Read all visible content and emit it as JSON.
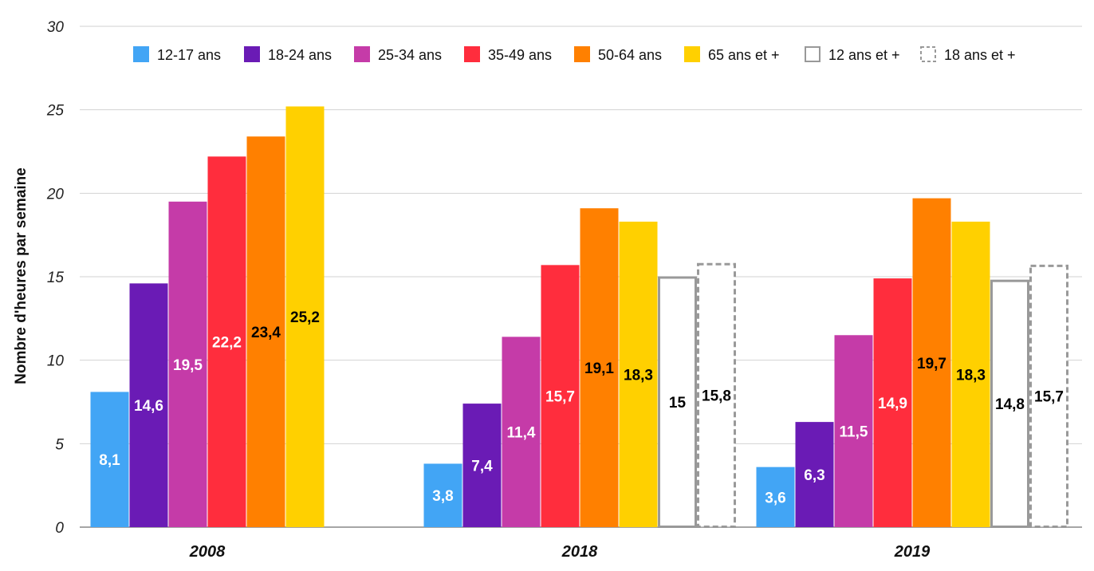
{
  "chart_data": {
    "type": "bar",
    "title": "",
    "xlabel": "",
    "ylabel": "Nombre d'heures par semaine",
    "ylim": [
      0,
      30
    ],
    "yticks": [
      0,
      5,
      10,
      15,
      20,
      25,
      30
    ],
    "grid": true,
    "legend_position": "top",
    "categories": [
      "2008",
      "2018",
      "2019"
    ],
    "series": [
      {
        "name": "12-17 ans",
        "color": "#42A5F5",
        "label_color": "#ffffff",
        "style": "solid",
        "values": [
          8.1,
          3.8,
          3.6
        ],
        "labels": [
          "8,1",
          "3,8",
          "3,6"
        ]
      },
      {
        "name": "18-24 ans",
        "color": "#6A1BB5",
        "label_color": "#ffffff",
        "style": "solid",
        "values": [
          14.6,
          7.4,
          6.3
        ],
        "labels": [
          "14,6",
          "7,4",
          "6,3"
        ]
      },
      {
        "name": "25-34 ans",
        "color": "#C53BA8",
        "label_color": "#ffffff",
        "style": "solid",
        "values": [
          19.5,
          11.4,
          11.5
        ],
        "labels": [
          "19,5",
          "11,4",
          "11,5"
        ]
      },
      {
        "name": "35-49 ans",
        "color": "#FF2D3D",
        "label_color": "#ffffff",
        "style": "solid",
        "values": [
          22.2,
          15.7,
          14.9
        ],
        "labels": [
          "22,2",
          "15,7",
          "14,9"
        ]
      },
      {
        "name": "50-64 ans",
        "color": "#FF8000",
        "label_color": "#000000",
        "style": "solid",
        "values": [
          23.4,
          19.1,
          19.7
        ],
        "labels": [
          "23,4",
          "19,1",
          "19,7"
        ]
      },
      {
        "name": "65 ans et +",
        "color": "#FFD000",
        "label_color": "#000000",
        "style": "solid",
        "values": [
          25.2,
          18.3,
          18.3
        ],
        "labels": [
          "25,2",
          "18,3",
          "18,3"
        ]
      },
      {
        "name": "12 ans et +",
        "color": "#999999",
        "label_color": "#000000",
        "style": "outline",
        "values": [
          null,
          15,
          14.8
        ],
        "labels": [
          null,
          "15",
          "14,8"
        ]
      },
      {
        "name": "18 ans et +",
        "color": "#999999",
        "label_color": "#000000",
        "style": "dashed",
        "values": [
          null,
          15.8,
          15.7
        ],
        "labels": [
          null,
          "15,8",
          "15,7"
        ]
      }
    ]
  }
}
